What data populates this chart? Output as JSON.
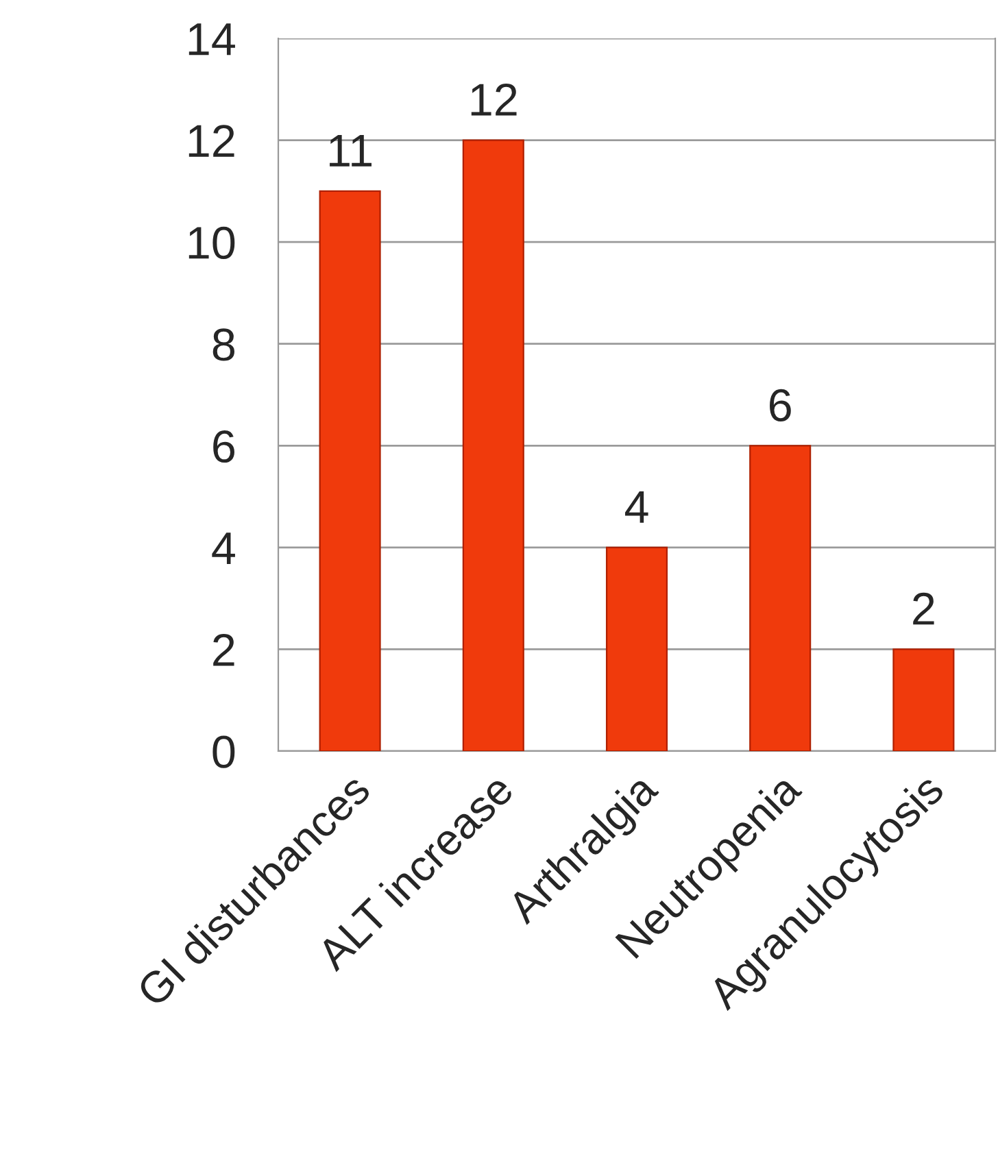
{
  "chart_data": {
    "type": "bar",
    "categories": [
      "GI disturbances",
      "ALT increase",
      "Arthralgia",
      "Neutropenia",
      "Agranulocytosis"
    ],
    "values": [
      11,
      12,
      4,
      6,
      2
    ],
    "color": "#f03a0c",
    "ylim": [
      0,
      14
    ],
    "yticks": [
      0,
      2,
      4,
      6,
      8,
      10,
      12,
      14
    ],
    "grid": "y",
    "data_labels": true
  }
}
